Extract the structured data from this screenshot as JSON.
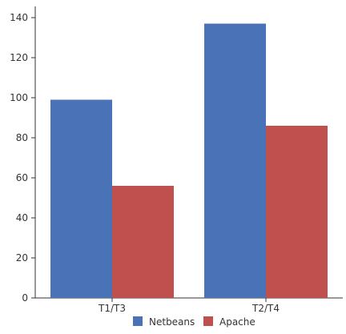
{
  "chart_data": {
    "type": "bar",
    "categories": [
      "T1/T3",
      "T2/T4"
    ],
    "series": [
      {
        "name": "Netbeans",
        "values": [
          99,
          137
        ],
        "color": "#4a72b6"
      },
      {
        "name": "Apache",
        "values": [
          56,
          86
        ],
        "color": "#c0504d"
      }
    ],
    "title": "",
    "xlabel": "",
    "ylabel": "",
    "ylim": [
      0,
      140
    ],
    "yticks": [
      "0",
      "20",
      "40",
      "60",
      "80",
      "100",
      "120",
      "140"
    ],
    "grid": false,
    "legend": "bottom"
  }
}
